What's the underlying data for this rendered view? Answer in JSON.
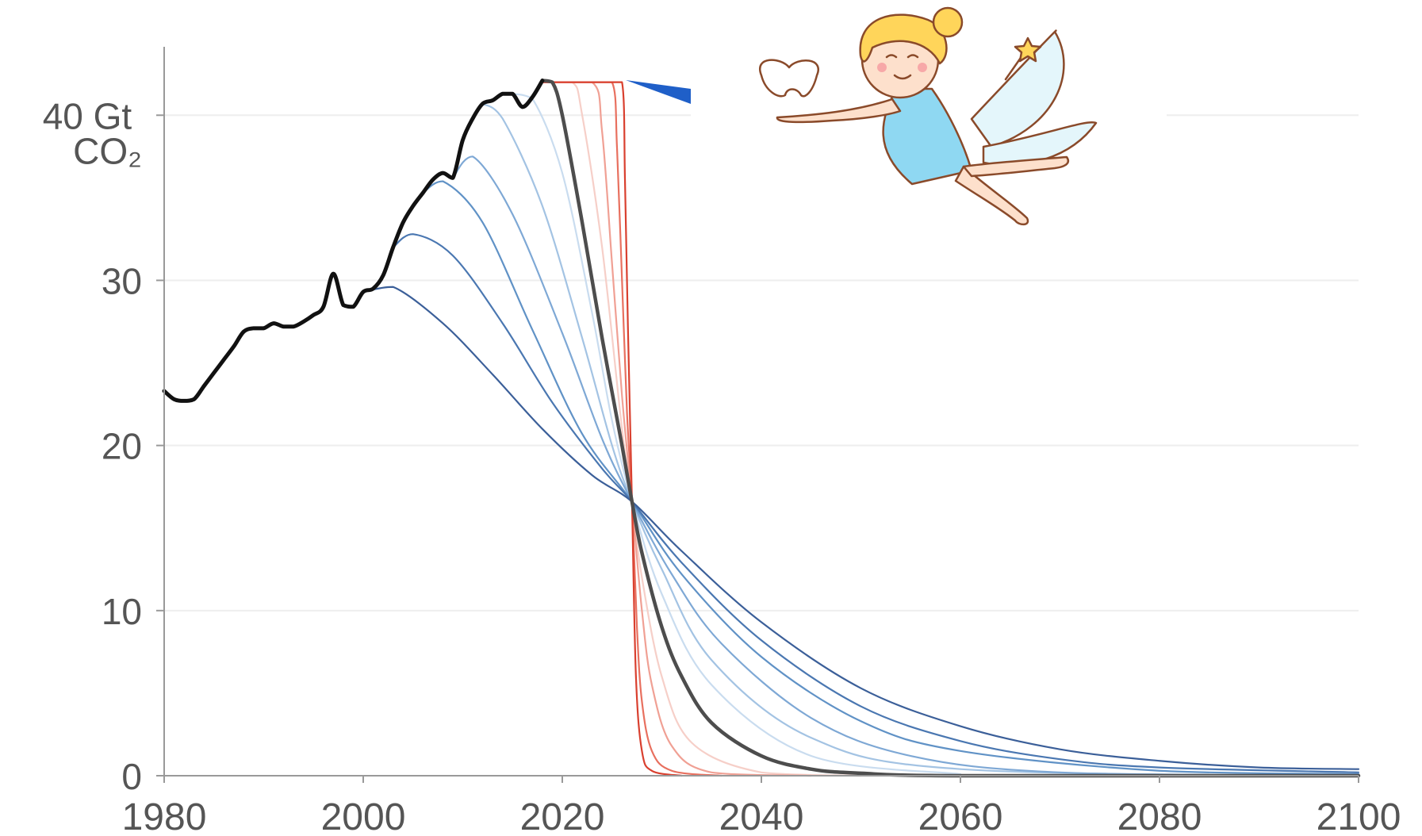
{
  "chart_data": {
    "type": "line",
    "xlim": [
      1980,
      2100
    ],
    "ylim": [
      0,
      44
    ],
    "xticks": [
      1980,
      2000,
      2020,
      2040,
      2060,
      2080,
      2100
    ],
    "yticks": [
      0,
      10,
      20,
      30,
      {
        "value": 40,
        "label": "40 Gt CO₂"
      }
    ],
    "grid": true,
    "series": [
      {
        "color": "#f6cfc8",
        "x": [
          2018,
          2021,
          2022,
          2024,
          2026,
          2027,
          2028,
          2030,
          2033,
          2040,
          2050
        ],
        "values": [
          42,
          42,
          40,
          32,
          21,
          16.6,
          12,
          6,
          2,
          0.2,
          0
        ]
      },
      {
        "color": "#f0a094",
        "x": [
          2018,
          2023,
          2024,
          2025,
          2026,
          2027,
          2028,
          2029,
          2031,
          2035,
          2045
        ],
        "values": [
          42,
          42,
          39,
          31,
          23,
          16.6,
          10,
          5.5,
          1.8,
          0.2,
          0
        ]
      },
      {
        "color": "#e8705f",
        "x": [
          2018,
          2025,
          2025.5,
          2026,
          2026.5,
          2027,
          2027.5,
          2028,
          2029,
          2031,
          2036
        ],
        "values": [
          42,
          42,
          38,
          30,
          22,
          16.6,
          9,
          4.5,
          1.5,
          0.3,
          0
        ]
      },
      {
        "color": "#d9402f",
        "x": [
          2018,
          2026,
          2026.3,
          2026.6,
          2027,
          2027.4,
          2028,
          2029,
          2032
        ],
        "values": [
          42,
          42,
          36,
          27,
          16.6,
          6,
          1.5,
          0.3,
          0
        ]
      },
      {
        "color": "#c9dcef",
        "x": [
          2015,
          2017,
          2020,
          2023,
          2025,
          2027,
          2030,
          2035,
          2045,
          2060
        ],
        "values": [
          41.3,
          41,
          36.5,
          28,
          21.5,
          16.6,
          11,
          5.5,
          1.2,
          0.1
        ]
      },
      {
        "color": "#a3c3e3",
        "x": [
          2012,
          2014,
          2018,
          2022,
          2025,
          2027,
          2030,
          2035,
          2045,
          2060,
          2100
        ],
        "values": [
          40.7,
          39.8,
          34.5,
          26.5,
          20,
          16.6,
          12.5,
          7,
          2.3,
          0.4,
          0
        ]
      },
      {
        "color": "#7ea8d5",
        "x": [
          2009,
          2011,
          2015,
          2020,
          2024,
          2027,
          2031,
          2036,
          2045,
          2055,
          2070,
          2100
        ],
        "values": [
          36.2,
          37.5,
          34,
          26.8,
          20.4,
          16.6,
          12.2,
          8,
          3.5,
          1.2,
          0.2,
          0
        ]
      },
      {
        "color": "#6092c6",
        "x": [
          2006,
          2008,
          2012,
          2017,
          2022,
          2027,
          2032,
          2040,
          2050,
          2060,
          2080,
          2100
        ],
        "values": [
          35.3,
          36,
          33.5,
          27,
          20.7,
          16.6,
          12.2,
          7.2,
          3.3,
          1.5,
          0.3,
          0.1
        ]
      },
      {
        "color": "#4a77b1",
        "x": [
          2003,
          2005,
          2009,
          2014,
          2019,
          2024,
          2027,
          2032,
          2040,
          2050,
          2060,
          2070,
          2080,
          2100
        ],
        "values": [
          32,
          32.8,
          31.5,
          27.4,
          22.6,
          18.6,
          16.6,
          12.9,
          8.2,
          4.2,
          2.1,
          1,
          0.5,
          0.2
        ]
      },
      {
        "color": "#3b5f99",
        "x": [
          2000,
          2003,
          2008,
          2013,
          2018,
          2023,
          2027,
          2032,
          2040,
          2050,
          2060,
          2070,
          2080,
          2090,
          2100
        ],
        "values": [
          29.3,
          29.6,
          27.4,
          24.3,
          21,
          18.2,
          16.6,
          13.6,
          9.3,
          5.3,
          3,
          1.6,
          0.9,
          0.5,
          0.4
        ]
      },
      {
        "color": "#4d4d4d",
        "x": [
          2018,
          2019,
          2020,
          2022,
          2024,
          2026,
          2027,
          2028,
          2030,
          2032,
          2035,
          2040,
          2045,
          2050,
          2060,
          2100
        ],
        "values": [
          42.1,
          42,
          40,
          33.5,
          26.5,
          20,
          16.6,
          13.5,
          9,
          6,
          3.2,
          1.2,
          0.4,
          0.15,
          0,
          0
        ]
      },
      {
        "color": "#111111",
        "x": [
          1980,
          1981,
          1982,
          1983,
          1984,
          1985,
          1986,
          1987,
          1988,
          1989,
          1990,
          1991,
          1992,
          1993,
          1994,
          1995,
          1996,
          1997,
          1998,
          1999,
          2000,
          2001,
          2002,
          2003,
          2004,
          2005,
          2006,
          2007,
          2008,
          2009,
          2010,
          2011,
          2012,
          2013,
          2014,
          2015,
          2016,
          2017,
          2018
        ],
        "values": [
          23.3,
          22.8,
          22.7,
          22.8,
          23.6,
          24.4,
          25.2,
          26,
          26.9,
          27.1,
          27.1,
          27.4,
          27.2,
          27.2,
          27.5,
          27.9,
          28.4,
          30.4,
          28.5,
          28.4,
          29.3,
          29.5,
          30.3,
          32,
          33.5,
          34.5,
          35.3,
          36.1,
          36.5,
          36.2,
          38.5,
          39.8,
          40.7,
          40.9,
          41.3,
          41.3,
          40.5,
          41.1,
          42.1
        ]
      }
    ]
  }
}
